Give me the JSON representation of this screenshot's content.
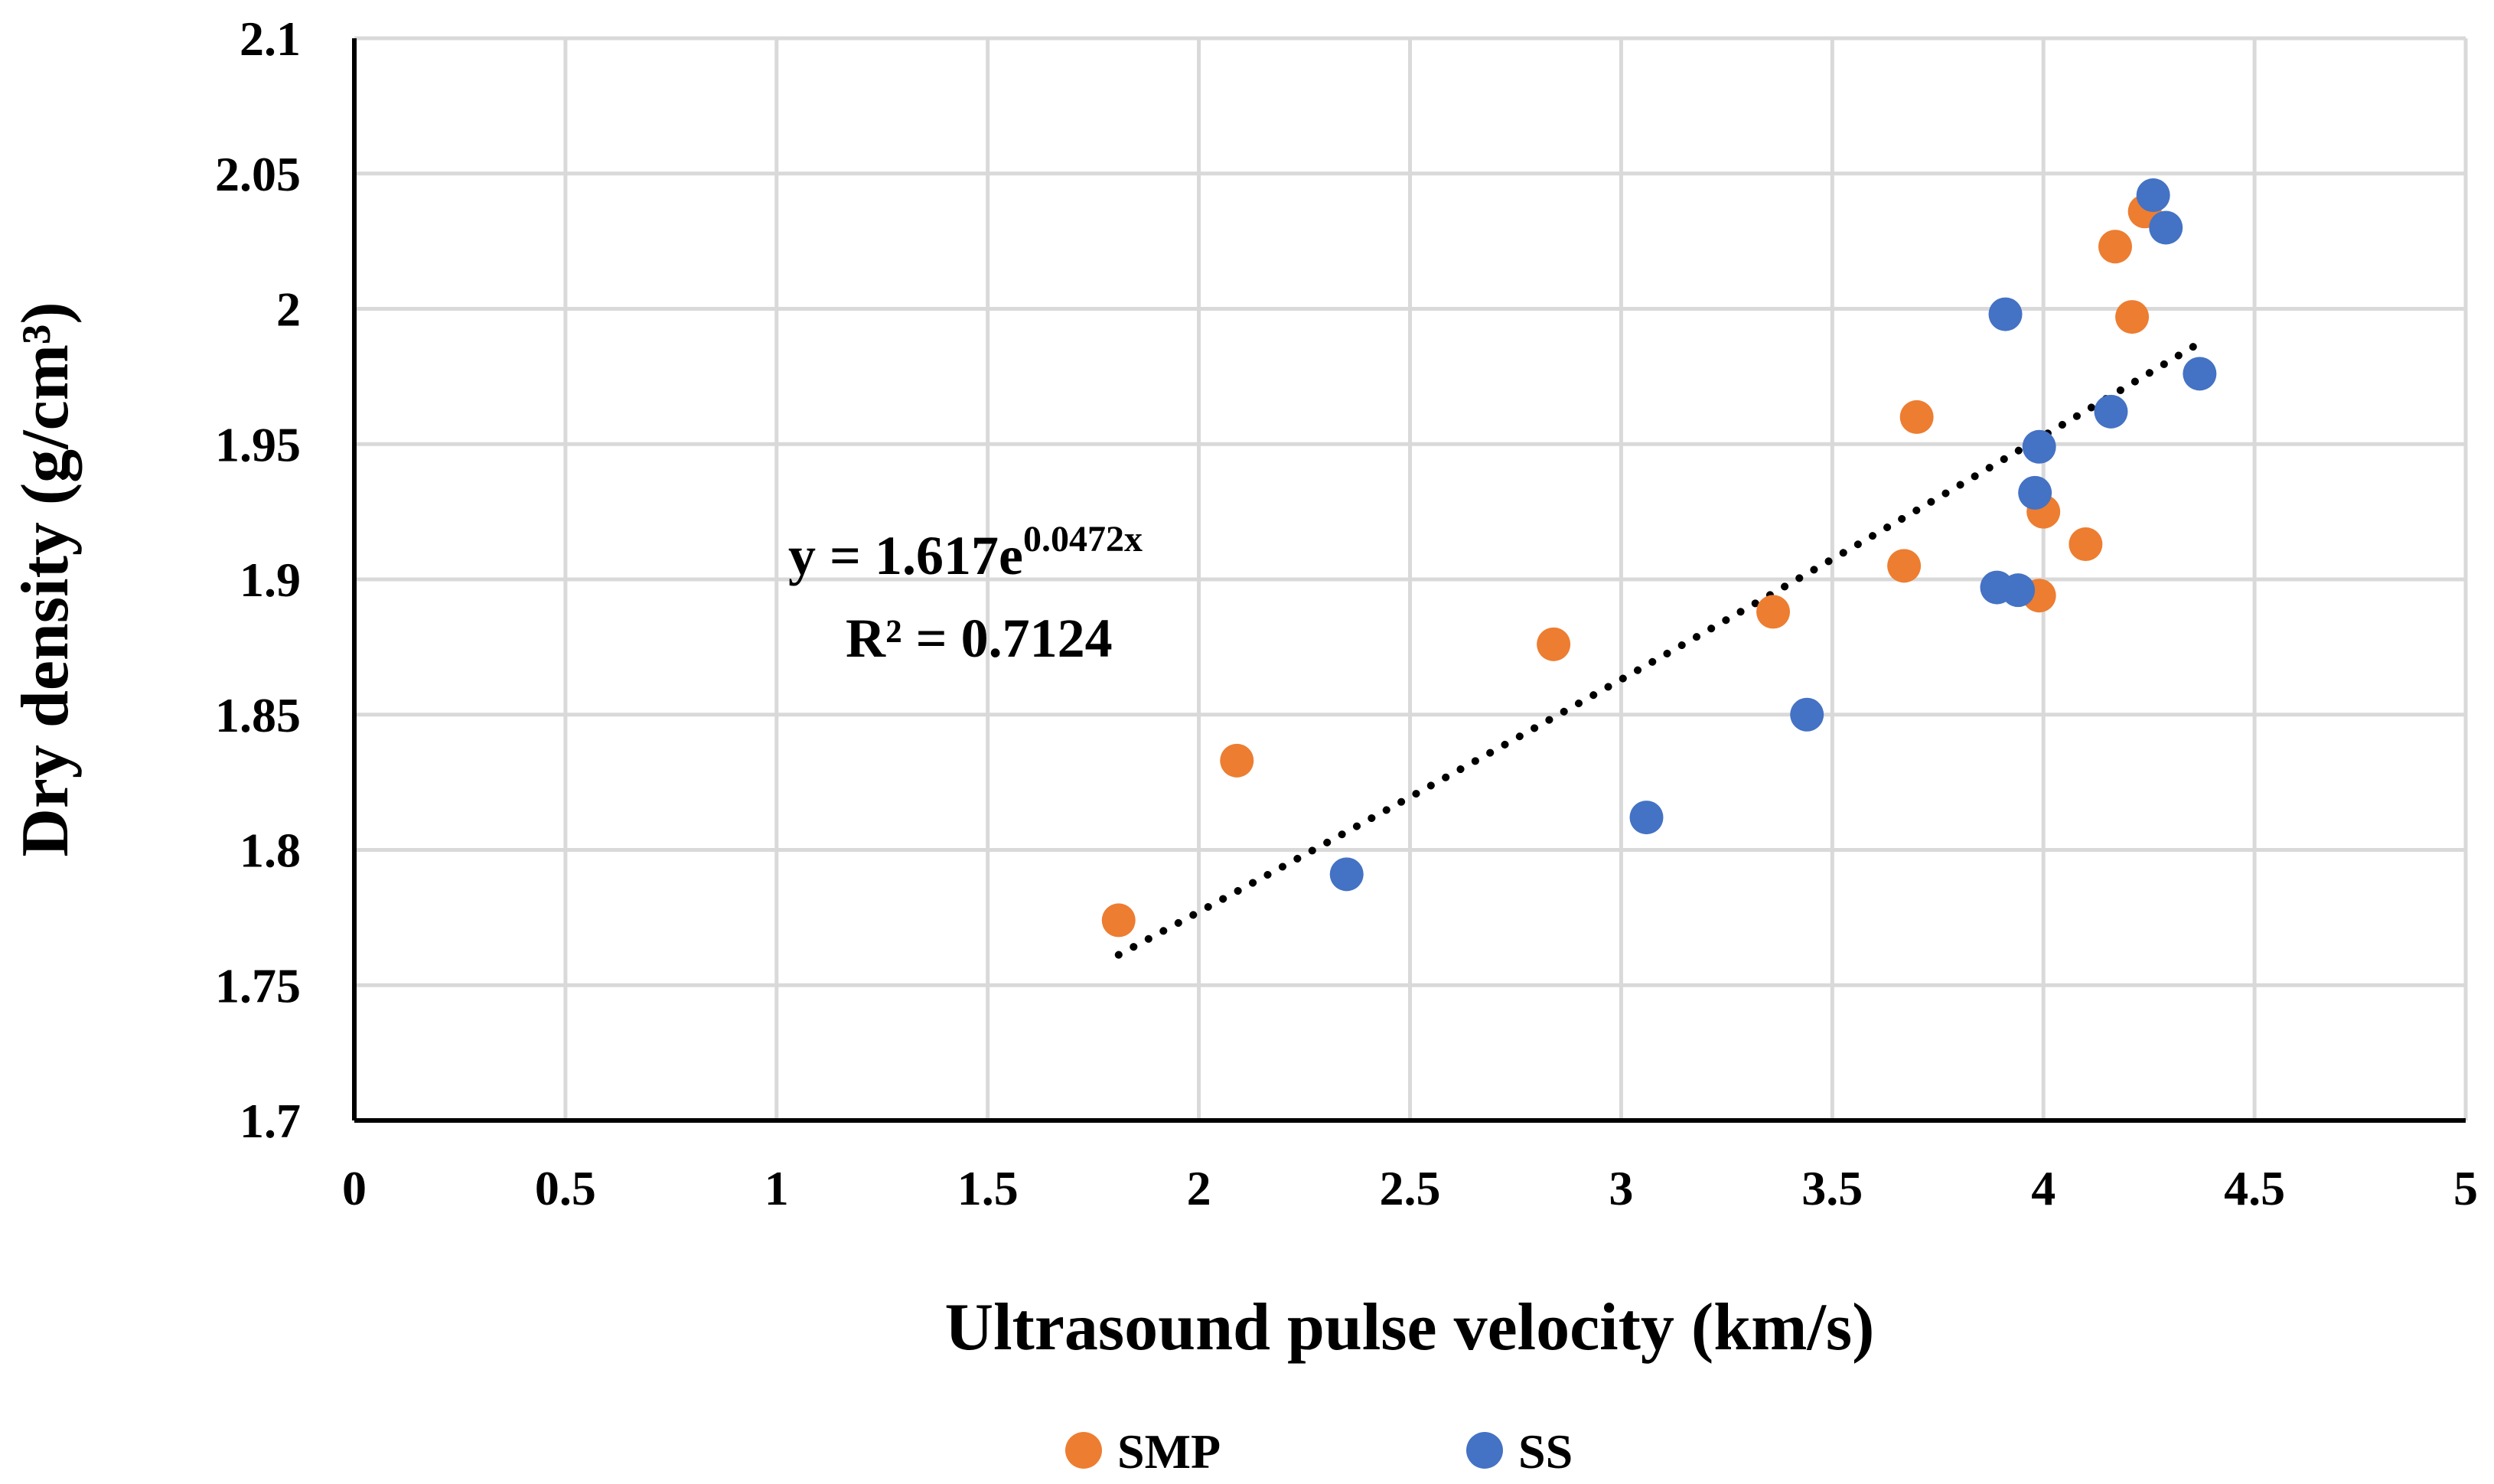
{
  "chart_data": {
    "type": "scatter",
    "xlabel": "Ultrasound pulse velocity (km/s)",
    "ylabel": "Dry density (g/cm³)",
    "xlim": [
      0,
      5
    ],
    "ylim": [
      1.7,
      2.1
    ],
    "xticks": [
      "0",
      "0.5",
      "1",
      "1.5",
      "2",
      "2.5",
      "3",
      "3.5",
      "4",
      "4.5",
      "5"
    ],
    "yticks": [
      "1.7",
      "1.75",
      "1.8",
      "1.85",
      "1.9",
      "1.95",
      "2",
      "2.05",
      "2.1"
    ],
    "grid": true,
    "legend_position": "bottom",
    "series": [
      {
        "name": "SMP",
        "color": "#ED7D31",
        "points": [
          {
            "x": 1.81,
            "y": 1.774
          },
          {
            "x": 2.09,
            "y": 1.833
          },
          {
            "x": 2.84,
            "y": 1.876
          },
          {
            "x": 3.36,
            "y": 1.888
          },
          {
            "x": 3.67,
            "y": 1.905
          },
          {
            "x": 3.7,
            "y": 1.96
          },
          {
            "x": 3.99,
            "y": 1.894
          },
          {
            "x": 4.0,
            "y": 1.925
          },
          {
            "x": 4.1,
            "y": 1.913
          },
          {
            "x": 4.17,
            "y": 2.023
          },
          {
            "x": 4.21,
            "y": 1.997
          },
          {
            "x": 4.24,
            "y": 2.036
          }
        ]
      },
      {
        "name": "SS",
        "color": "#4472C4",
        "points": [
          {
            "x": 2.35,
            "y": 1.791
          },
          {
            "x": 3.06,
            "y": 1.812
          },
          {
            "x": 3.44,
            "y": 1.85
          },
          {
            "x": 3.89,
            "y": 1.897
          },
          {
            "x": 3.94,
            "y": 1.896
          },
          {
            "x": 3.91,
            "y": 1.998
          },
          {
            "x": 3.98,
            "y": 1.932
          },
          {
            "x": 3.99,
            "y": 1.949
          },
          {
            "x": 4.16,
            "y": 1.962
          },
          {
            "x": 4.26,
            "y": 2.042
          },
          {
            "x": 4.29,
            "y": 2.03
          },
          {
            "x": 4.37,
            "y": 1.976
          }
        ]
      }
    ],
    "trendline": {
      "type": "exponential",
      "style": "dotted",
      "color": "#000000",
      "a": 1.617,
      "b": 0.0472,
      "x_range": [
        1.81,
        4.37
      ],
      "equation_prefix": "y = 1.617e",
      "equation_exponent": "0.0472x",
      "r2_label": "R² = 0.7124"
    }
  }
}
